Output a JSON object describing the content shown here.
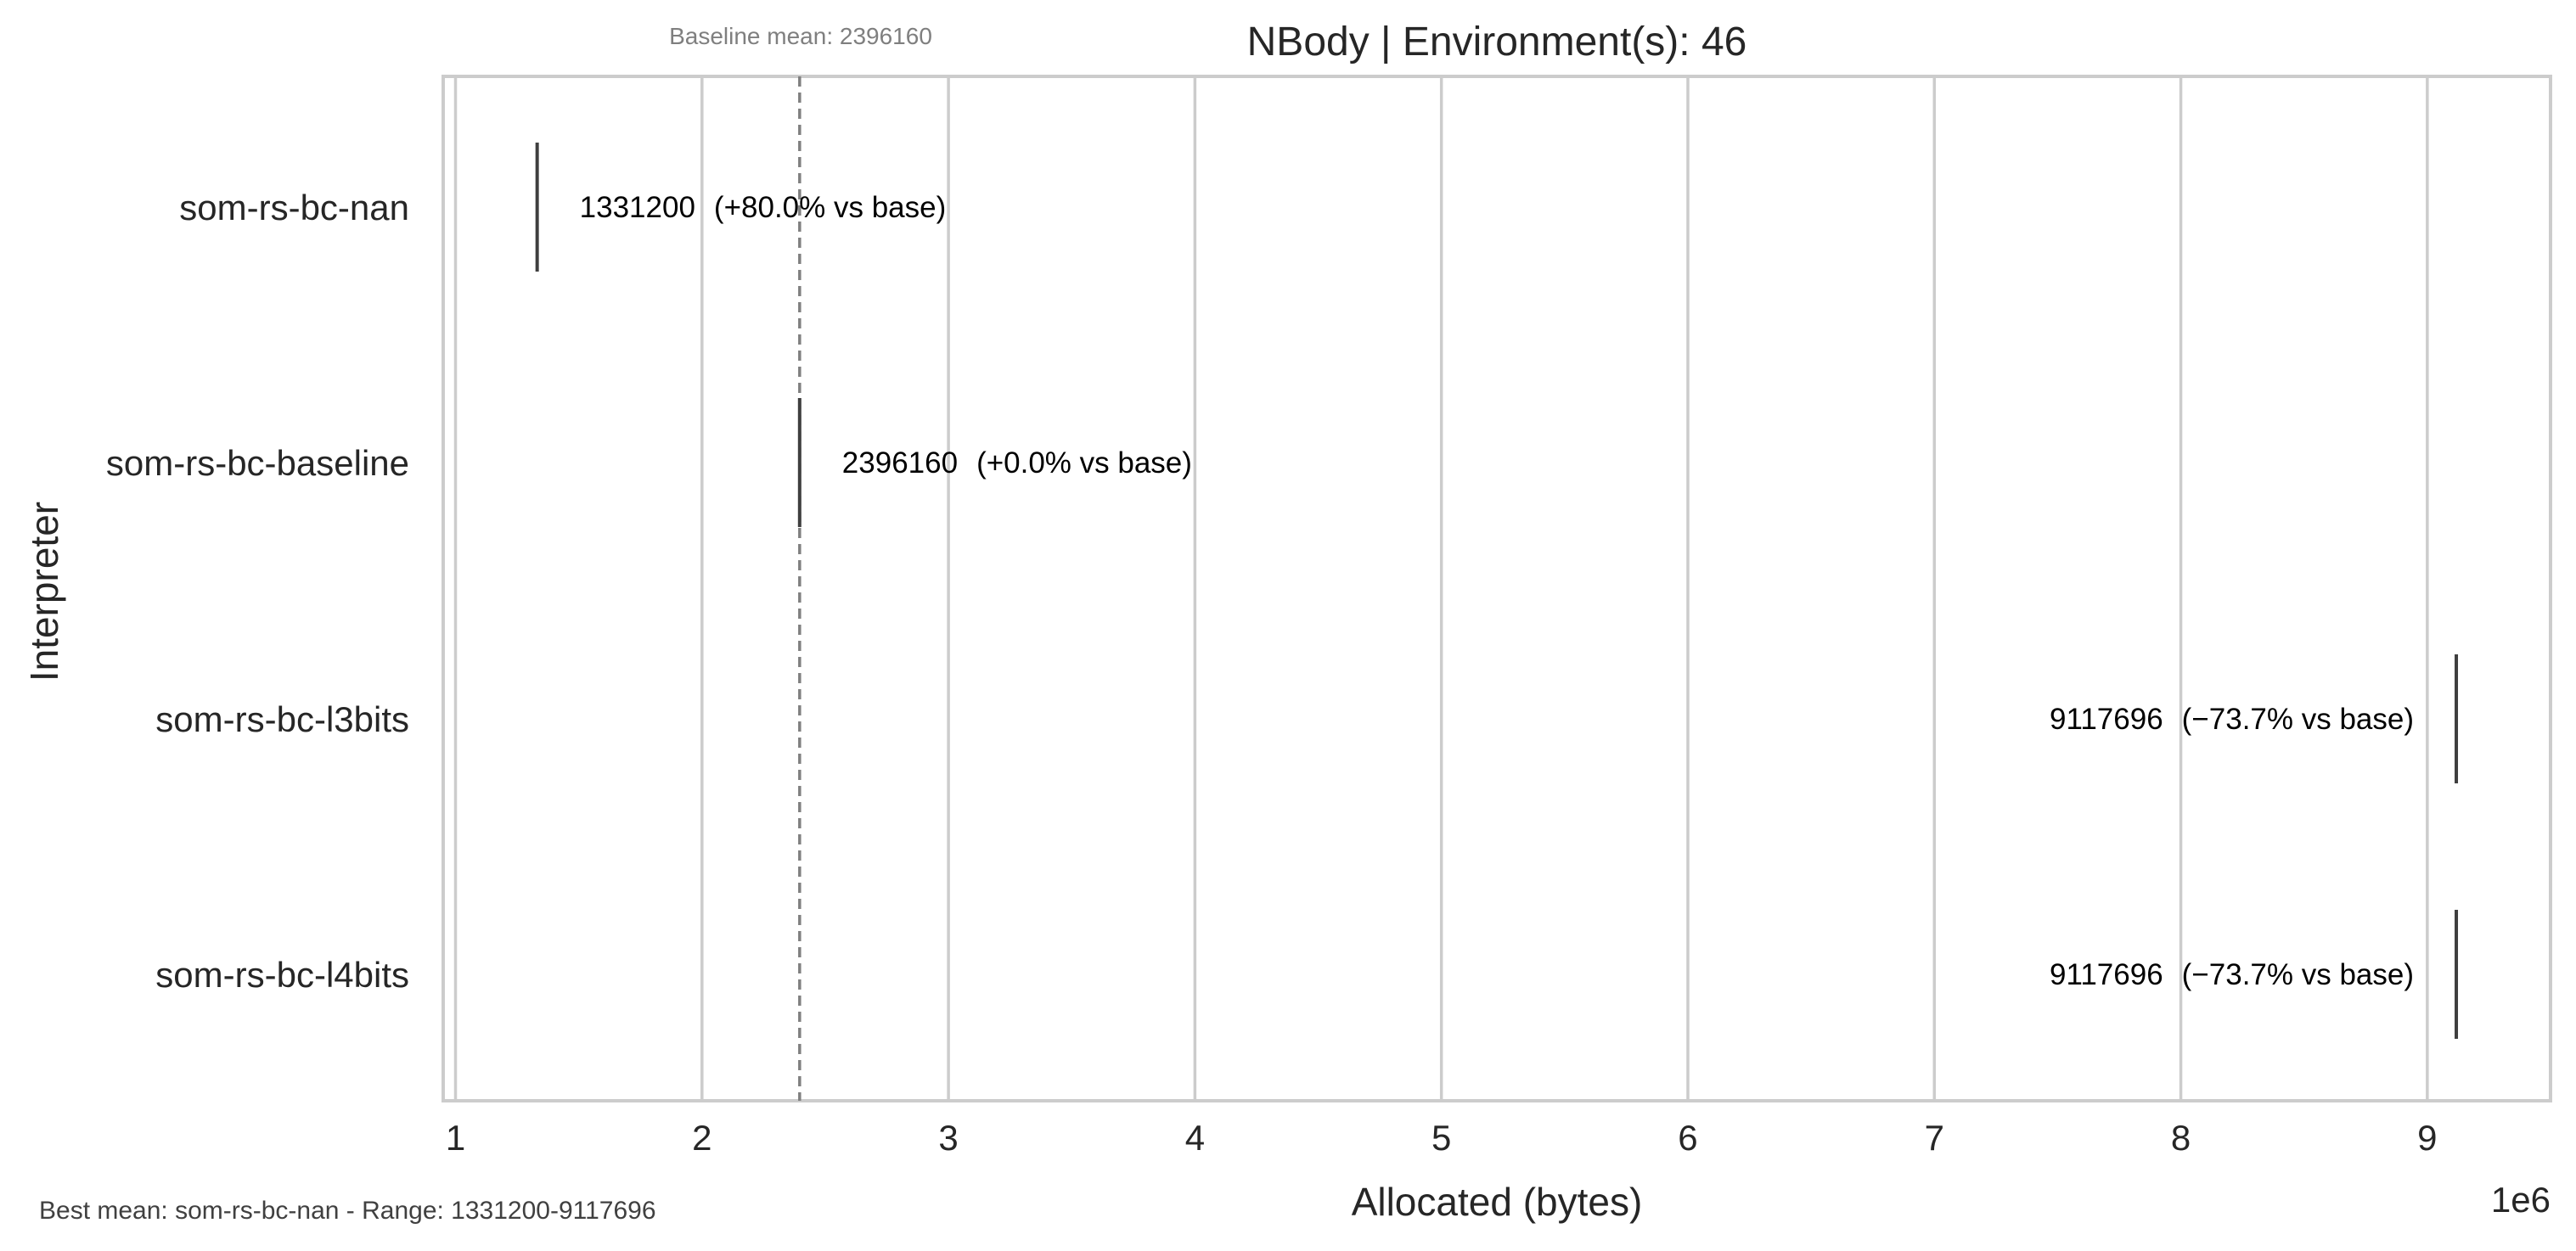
{
  "chart_data": {
    "type": "box",
    "orientation": "horizontal",
    "title": "NBody | Environment(s): 46",
    "xlabel": "Allocated (bytes)",
    "ylabel": "Interpreter",
    "x_offset_label": "1e6",
    "x_scale": 1000000,
    "xlim": [
      0.95,
      9.5
    ],
    "xticks": [
      "1",
      "2",
      "3",
      "4",
      "5",
      "6",
      "7",
      "8",
      "9"
    ],
    "grid": true,
    "categories": [
      "som-rs-bc-nan",
      "som-rs-bc-baseline",
      "som-rs-bc-l3bits",
      "som-rs-bc-l4bits"
    ],
    "values": [
      1331200,
      2396160,
      9117696,
      9117696
    ],
    "value_labels": [
      "1331200",
      "2396160",
      "9117696",
      "9117696"
    ],
    "annotations": [
      "(+80.0% vs base)",
      "(+0.0% vs base)",
      "(−73.7% vs base)",
      "(−73.7% vs base)"
    ],
    "label_side": [
      "right",
      "right",
      "left",
      "left"
    ],
    "baseline": {
      "value": 2396160,
      "label": "Baseline mean: 2396160",
      "style": "dashed"
    },
    "footer": "Best mean: som-rs-bc-nan - Range: 1331200-9117696",
    "colors": {
      "grid": "#cccccc",
      "frame": "#cccccc",
      "marker": "#3f3f3f",
      "baseline": "#808080",
      "text": "#262626"
    }
  }
}
